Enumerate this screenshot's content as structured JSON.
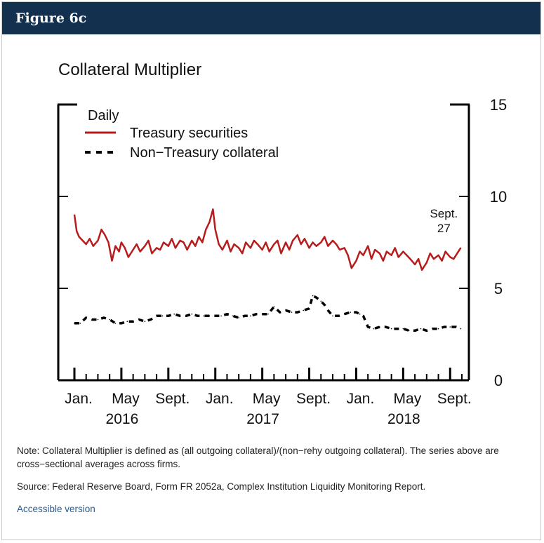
{
  "figure_label": "Figure 6c",
  "note": "Note: Collateral Multiplier is defined as (all outgoing collateral)/(non−rehy outgoing collateral). The series above are cross−sectional averages across firms.",
  "source": "Source: Federal Reserve Board, Form FR 2052a, Complex Institution Liquidity Monitoring Report.",
  "accessible_link": "Accessible version",
  "colors": {
    "header_bg": "#13314f",
    "treasury": "#b71c1c",
    "non_treasury": "#000000"
  },
  "chart_data": {
    "type": "line",
    "title": "Collateral Multiplier",
    "frequency": "Daily",
    "legend_title": "Daily",
    "legend_position": "top-left",
    "ylim": [
      0,
      15
    ],
    "y_ticks": [
      0,
      5,
      10,
      15
    ],
    "x_domain_months": [
      0,
      33
    ],
    "x_month_ticks": [
      0,
      4,
      8,
      12,
      16,
      20,
      24,
      28,
      32
    ],
    "x_minor_step_months": 1,
    "x_tick_labels": [
      {
        "label": "Jan.",
        "month": 0
      },
      {
        "label": "May",
        "month": 4
      },
      {
        "label": "Sept.",
        "month": 8
      },
      {
        "label": "Jan.",
        "month": 12
      },
      {
        "label": "May",
        "month": 16
      },
      {
        "label": "Sept.",
        "month": 20
      },
      {
        "label": "Jan.",
        "month": 24
      },
      {
        "label": "May",
        "month": 28
      },
      {
        "label": "Sept.",
        "month": 32
      }
    ],
    "year_labels": [
      {
        "label": "2016",
        "month": 4
      },
      {
        "label": "2017",
        "month": 16
      },
      {
        "label": "2018",
        "month": 28
      }
    ],
    "annotation": {
      "line1": "Sept.",
      "line2": "27",
      "month": 32.9
    },
    "series": [
      {
        "name": "Treasury securities",
        "style": "solid",
        "x": [
          0,
          0.2,
          0.4,
          0.7,
          1,
          1.3,
          1.6,
          2,
          2.3,
          2.6,
          2.9,
          3.2,
          3.5,
          3.8,
          4,
          4.3,
          4.6,
          5,
          5.3,
          5.6,
          6,
          6.3,
          6.6,
          7,
          7.3,
          7.6,
          8,
          8.3,
          8.6,
          9,
          9.3,
          9.6,
          10,
          10.3,
          10.6,
          10.9,
          11.2,
          11.5,
          11.8,
          12,
          12.3,
          12.6,
          13,
          13.3,
          13.6,
          14,
          14.3,
          14.6,
          15,
          15.3,
          15.6,
          16,
          16.3,
          16.6,
          17,
          17.3,
          17.6,
          18,
          18.3,
          18.6,
          19,
          19.3,
          19.6,
          20,
          20.3,
          20.6,
          21,
          21.3,
          21.6,
          22,
          22.3,
          22.6,
          23,
          23.3,
          23.6,
          24,
          24.3,
          24.6,
          25,
          25.3,
          25.6,
          26,
          26.3,
          26.6,
          27,
          27.3,
          27.6,
          28,
          28.3,
          28.6,
          29,
          29.3,
          29.6,
          30,
          30.3,
          30.6,
          31,
          31.3,
          31.6,
          32,
          32.3,
          32.6,
          32.9
        ],
        "values": [
          9.0,
          8.1,
          7.8,
          7.6,
          7.4,
          7.7,
          7.3,
          7.6,
          8.2,
          7.9,
          7.5,
          6.5,
          7.3,
          7.0,
          7.5,
          7.2,
          6.7,
          7.1,
          7.4,
          7.0,
          7.3,
          7.6,
          6.9,
          7.2,
          7.1,
          7.5,
          7.3,
          7.7,
          7.2,
          7.6,
          7.5,
          7.1,
          7.6,
          7.3,
          7.8,
          7.5,
          8.2,
          8.6,
          9.3,
          8.2,
          7.4,
          7.1,
          7.6,
          7.0,
          7.4,
          7.2,
          6.9,
          7.5,
          7.2,
          7.6,
          7.4,
          7.1,
          7.5,
          7.0,
          7.4,
          7.6,
          6.9,
          7.5,
          7.1,
          7.6,
          7.9,
          7.4,
          7.7,
          7.2,
          7.5,
          7.3,
          7.5,
          7.8,
          7.3,
          7.6,
          7.4,
          7.1,
          7.2,
          6.8,
          6.1,
          6.5,
          7.0,
          6.8,
          7.3,
          6.6,
          7.1,
          6.9,
          6.5,
          7.0,
          6.8,
          7.2,
          6.7,
          7.0,
          6.8,
          6.6,
          6.3,
          6.6,
          6.0,
          6.4,
          6.9,
          6.6,
          6.8,
          6.5,
          7.0,
          6.7,
          6.6,
          6.9,
          7.2
        ]
      },
      {
        "name": "Non−Treasury collateral",
        "style": "dashed",
        "x": [
          0,
          0.5,
          1,
          1.5,
          2,
          2.5,
          3,
          3.5,
          4,
          4.5,
          5,
          5.5,
          6,
          6.5,
          7,
          7.5,
          8,
          8.5,
          9,
          9.5,
          10,
          10.5,
          11,
          11.5,
          12,
          12.5,
          13,
          13.5,
          14,
          14.5,
          15,
          15.5,
          16,
          16.5,
          17,
          17.5,
          18,
          18.5,
          19,
          19.5,
          20,
          20.3,
          20.6,
          21,
          21.3,
          21.6,
          22,
          22.5,
          23,
          23.5,
          24,
          24.3,
          24.6,
          25,
          25.5,
          26,
          26.5,
          27,
          27.5,
          28,
          28.5,
          29,
          29.5,
          30,
          30.5,
          31,
          31.5,
          32,
          32.5,
          32.9
        ],
        "values": [
          3.1,
          3.1,
          3.4,
          3.3,
          3.3,
          3.4,
          3.3,
          3.1,
          3.1,
          3.2,
          3.2,
          3.3,
          3.2,
          3.3,
          3.5,
          3.5,
          3.5,
          3.6,
          3.5,
          3.5,
          3.6,
          3.5,
          3.5,
          3.5,
          3.5,
          3.5,
          3.6,
          3.5,
          3.4,
          3.5,
          3.5,
          3.6,
          3.6,
          3.6,
          4.0,
          3.7,
          3.8,
          3.7,
          3.7,
          3.8,
          3.9,
          4.6,
          4.5,
          4.3,
          4.1,
          3.8,
          3.5,
          3.5,
          3.6,
          3.7,
          3.7,
          3.6,
          3.5,
          2.9,
          2.8,
          2.9,
          2.9,
          2.8,
          2.8,
          2.8,
          2.7,
          2.7,
          2.8,
          2.7,
          2.8,
          2.8,
          2.9,
          2.9,
          2.9,
          2.8
        ]
      }
    ]
  }
}
